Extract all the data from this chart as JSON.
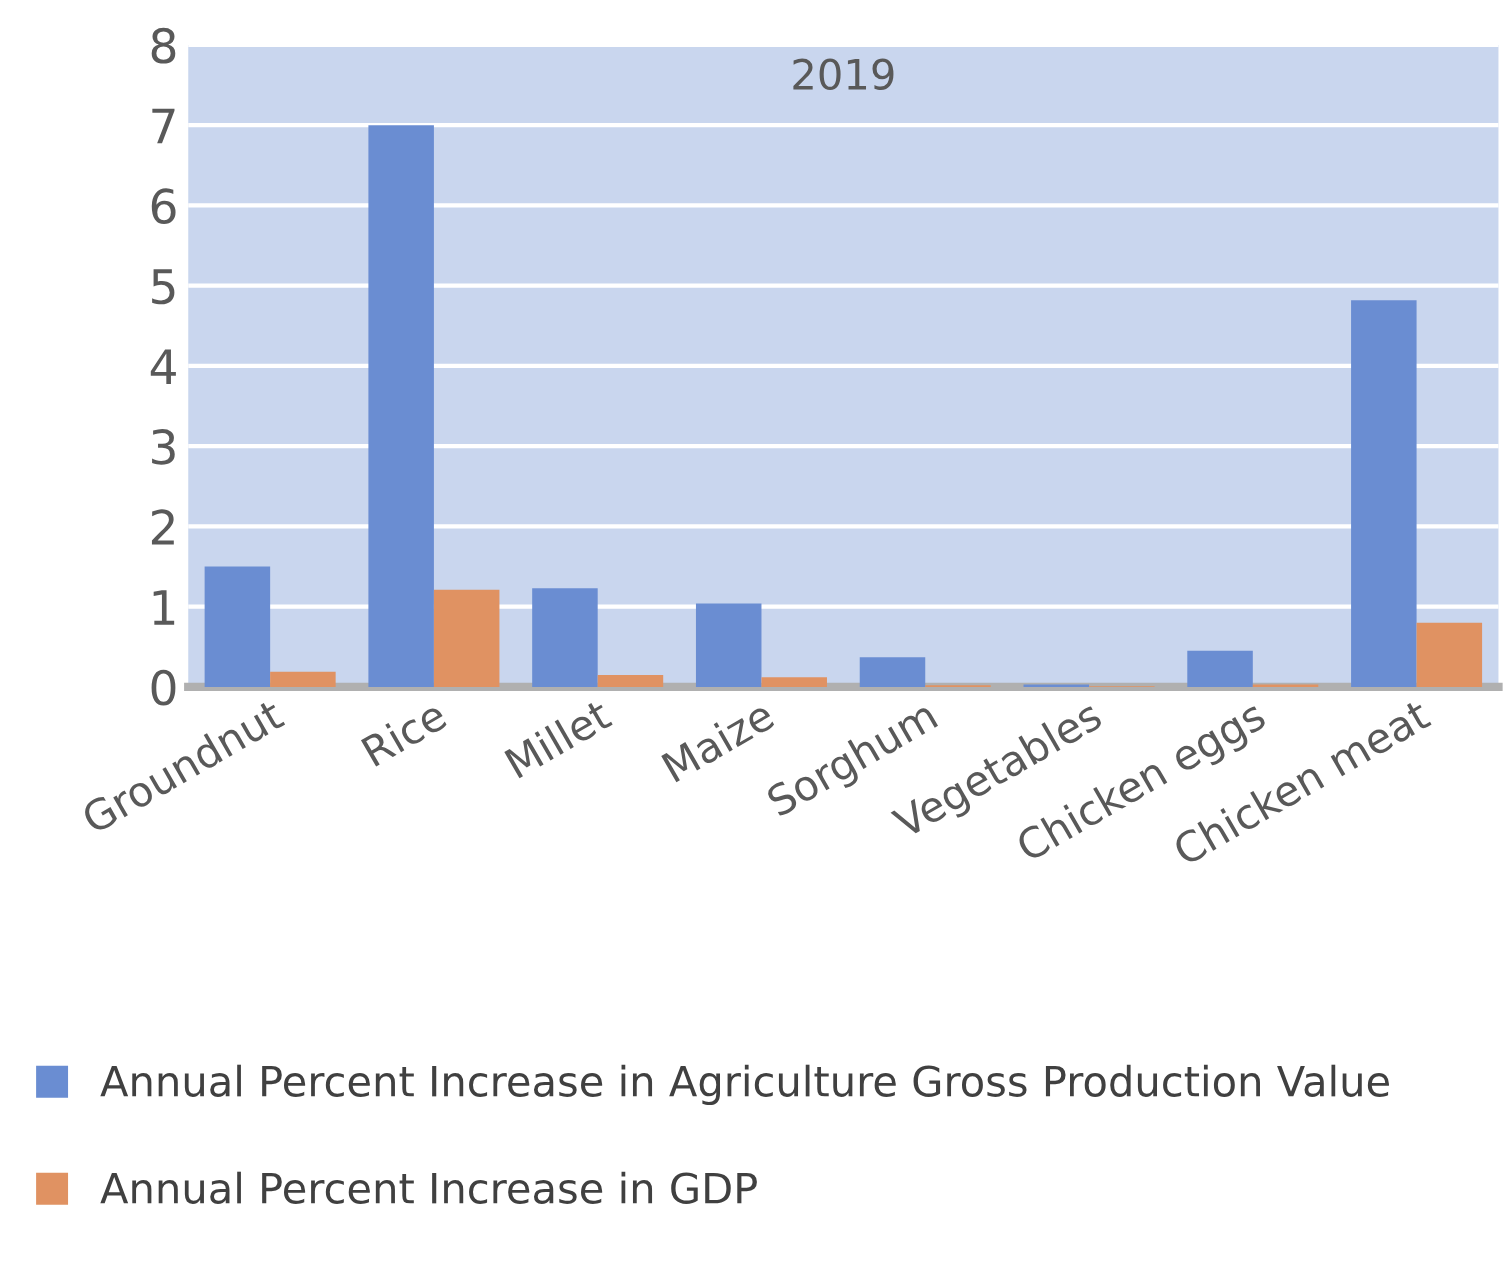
{
  "chart_data": {
    "type": "bar",
    "title": "2019",
    "categories": [
      "Groundnut",
      "Rice",
      "Millet",
      "Maize",
      "Sorghum",
      "Vegetables",
      "Chicken eggs",
      "Chicken meat"
    ],
    "series": [
      {
        "name": "Annual Percent Increase in Agriculture Gross Production Value",
        "color": "#6a8dd2",
        "values": [
          1.5,
          7.0,
          1.23,
          1.04,
          0.37,
          0.03,
          0.45,
          4.82
        ]
      },
      {
        "name": "Annual Percent Increase in GDP",
        "color": "#e09262",
        "values": [
          0.19,
          1.21,
          0.15,
          0.12,
          0.02,
          0.01,
          0.03,
          0.8
        ]
      }
    ],
    "ylim": [
      0,
      8
    ],
    "yticks": [
      0,
      1,
      2,
      3,
      4,
      5,
      6,
      7,
      8
    ],
    "grid": "y",
    "legend": "bottom"
  }
}
